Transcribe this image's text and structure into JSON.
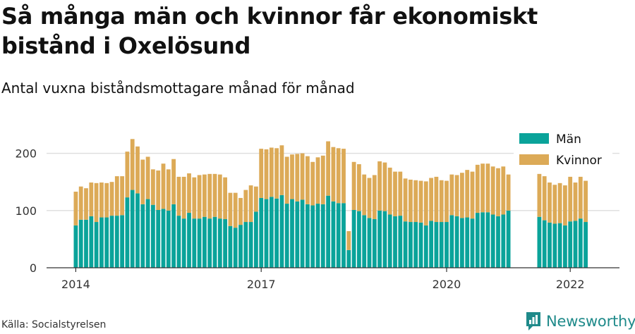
{
  "title": "Så många män och kvinnor får ekonomiskt bistånd i Oxelösund",
  "subtitle": "Antal vuxna biståndsmottagare månad för månad",
  "source": "Källa: Socialstyrelsen",
  "brand": "Newsworthy",
  "colors": {
    "man": "#0aa39a",
    "kvinnor": "#dcaa57",
    "grid": "#dddddd",
    "axis": "#333333",
    "brand": "#1f8a8a"
  },
  "icons": {
    "brand_logo": "newsworthy-logo-icon"
  },
  "chart_data": {
    "type": "bar",
    "stacked": true,
    "x_ticks": [
      "2014",
      "2017",
      "2020",
      "2022"
    ],
    "ylim": [
      0,
      200
    ],
    "y_ticks": [
      0,
      100,
      200
    ],
    "legend_position": "top-right",
    "grid": true,
    "series": [
      {
        "name": "Män",
        "values": [
          74,
          84,
          84,
          90,
          80,
          88,
          88,
          91,
          91,
          92,
          123,
          136,
          130,
          111,
          120,
          110,
          101,
          103,
          100,
          111,
          91,
          86,
          96,
          86,
          86,
          89,
          86,
          89,
          86,
          85,
          73,
          70,
          75,
          80,
          80,
          98,
          122,
          120,
          124,
          121,
          127,
          112,
          120,
          116,
          119,
          111,
          109,
          112,
          111,
          126,
          116,
          113,
          113,
          31,
          101,
          99,
          92,
          87,
          85,
          100,
          99,
          93,
          90,
          91,
          81,
          80,
          80,
          79,
          74,
          82,
          80,
          80,
          80,
          92,
          90,
          87,
          88,
          86,
          96,
          97,
          97,
          93,
          90,
          93,
          100,
          null,
          null,
          null,
          null,
          null,
          89,
          83,
          79,
          77,
          78,
          74,
          81,
          82,
          86,
          80
        ]
      },
      {
        "name": "Kvinnor",
        "values": [
          59,
          58,
          55,
          59,
          68,
          61,
          60,
          59,
          69,
          68,
          80,
          89,
          82,
          78,
          74,
          62,
          69,
          79,
          72,
          79,
          68,
          73,
          69,
          72,
          76,
          74,
          78,
          75,
          77,
          73,
          58,
          61,
          47,
          56,
          64,
          44,
          86,
          87,
          86,
          88,
          87,
          82,
          78,
          83,
          81,
          84,
          76,
          81,
          85,
          95,
          95,
          96,
          95,
          33,
          84,
          82,
          71,
          70,
          77,
          86,
          85,
          82,
          78,
          77,
          75,
          74,
          73,
          73,
          77,
          75,
          79,
          73,
          72,
          71,
          72,
          79,
          83,
          82,
          84,
          85,
          85,
          84,
          84,
          84,
          63,
          null,
          null,
          null,
          null,
          null,
          75,
          77,
          70,
          68,
          70,
          70,
          78,
          67,
          73,
          72
        ]
      }
    ]
  }
}
